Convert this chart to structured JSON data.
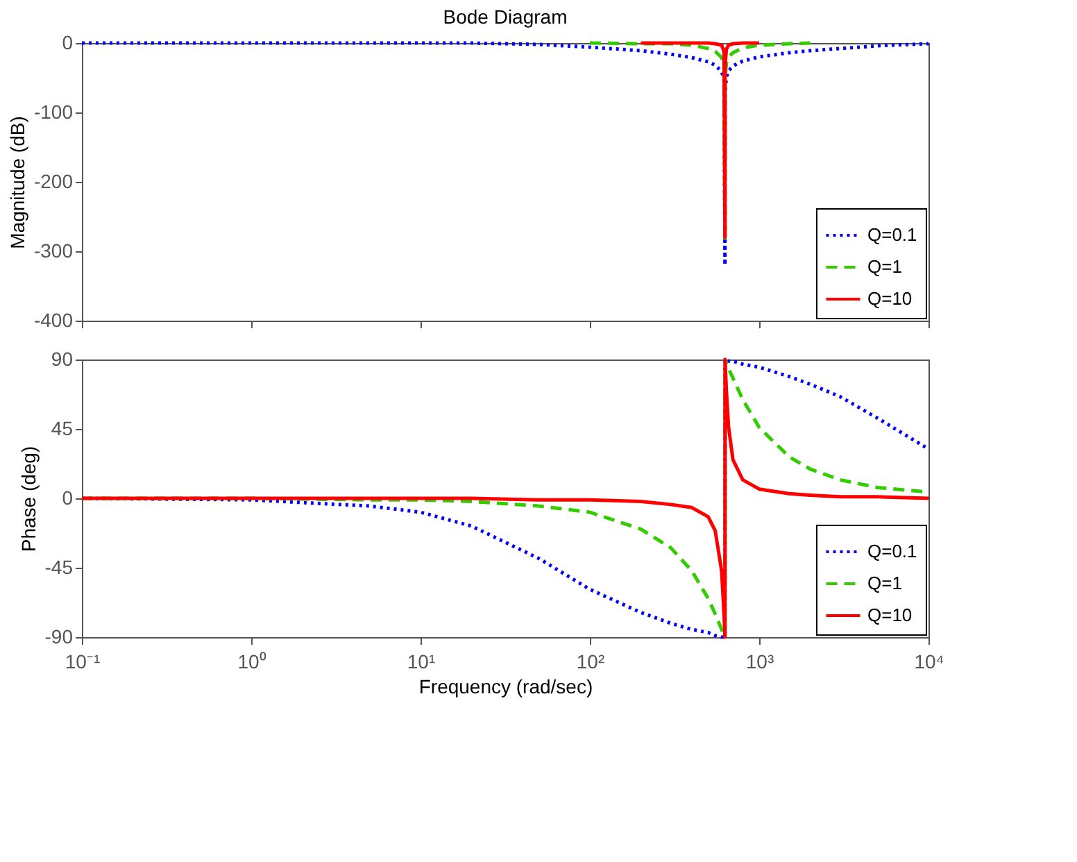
{
  "chart_data": [
    {
      "type": "line",
      "title": "Bode Diagram",
      "ylabel": "Magnitude (dB)",
      "log": "x",
      "grid": false,
      "legend": "bottom right",
      "tick_labels": "y",
      "x": [
        0.1,
        1,
        5,
        10,
        20,
        50,
        100,
        200,
        300,
        400,
        500,
        550,
        600,
        620,
        628,
        629,
        640,
        660,
        700,
        800,
        1000,
        1500,
        2000,
        3000,
        5000,
        10000
      ],
      "xlim": [
        0.1,
        10000
      ],
      "xticks": [
        {
          "value": 0.1,
          "label": null
        },
        {
          "value": 1,
          "label": null
        },
        {
          "value": 10,
          "label": null
        },
        {
          "value": 100,
          "label": null
        },
        {
          "value": 1000,
          "label": null
        },
        {
          "value": 10000,
          "label": null
        }
      ],
      "ylim": [
        -400,
        0
      ],
      "yticks": [
        -400,
        -300,
        -200,
        -100,
        0
      ],
      "series": [
        {
          "name": "Q=0.1",
          "color": "#0000ff",
          "line_style": "dotted",
          "values": [
            0,
            0,
            0,
            0,
            0,
            -2,
            -6,
            -11,
            -16,
            -21,
            -27,
            -32,
            -41,
            -52,
            -320,
            -73,
            -49,
            -40,
            -33,
            -26,
            -20,
            -14,
            -11,
            -8,
            -4,
            -1
          ]
        },
        {
          "name": "Q=1",
          "color": "#33cc00",
          "line_style": "dashed",
          "values": [
            null,
            null,
            null,
            null,
            null,
            null,
            0,
            -1,
            -1,
            -3,
            -8,
            -12,
            -21,
            -32,
            -285,
            -53,
            -29,
            -20,
            -14,
            -7,
            -3,
            -1,
            0,
            null,
            null,
            null
          ]
        },
        {
          "name": "Q=10",
          "color": "#ff0000",
          "line_style": "solid",
          "values": [
            null,
            null,
            null,
            null,
            null,
            null,
            null,
            0,
            0,
            0,
            0,
            -1,
            -3,
            -12,
            -280,
            -33,
            -9,
            -3,
            -1,
            0,
            0,
            null,
            null,
            null,
            null,
            null
          ]
        }
      ]
    },
    {
      "type": "line",
      "xlabel": "Frequency  (rad/sec)",
      "ylabel": "Phase (deg)",
      "log": "x",
      "grid": false,
      "legend": "bottom right",
      "x": [
        0.1,
        1,
        5,
        10,
        20,
        50,
        100,
        200,
        300,
        400,
        500,
        550,
        600,
        620,
        628,
        629,
        640,
        660,
        700,
        800,
        1000,
        1500,
        2000,
        3000,
        5000,
        10000
      ],
      "xlim": [
        0.1,
        10000
      ],
      "xticks": [
        {
          "value": 0.1,
          "label": "10⁻¹"
        },
        {
          "value": 1,
          "label": "10⁰"
        },
        {
          "value": 10,
          "label": "10¹"
        },
        {
          "value": 100,
          "label": "10²"
        },
        {
          "value": 1000,
          "label": "10³"
        },
        {
          "value": 10000,
          "label": "10⁴"
        }
      ],
      "ylim": [
        -90,
        90
      ],
      "yticks": [
        -90,
        -45,
        0,
        45,
        90
      ],
      "series": [
        {
          "name": "Q=0.1",
          "color": "#0000ff",
          "line_style": "dotted",
          "values": [
            0,
            -1,
            -5,
            -9,
            -18,
            -39,
            -59,
            -74,
            -81,
            -85,
            -87,
            -89,
            -90,
            -90,
            -90,
            90,
            90,
            89,
            89,
            87,
            85,
            79,
            74,
            66,
            52,
            32
          ]
        },
        {
          "name": "Q=1",
          "color": "#33cc00",
          "line_style": "dashed",
          "values": [
            0,
            0,
            -1,
            -1,
            -2,
            -5,
            -9,
            -20,
            -32,
            -47,
            -65,
            -75,
            -85,
            -89,
            -90,
            90,
            88,
            84,
            78,
            64,
            46,
            27,
            19,
            12,
            7,
            4
          ]
        },
        {
          "name": "Q=10",
          "color": "#ff0000",
          "line_style": "solid",
          "values": [
            0,
            0,
            0,
            0,
            0,
            -1,
            -1,
            -2,
            -4,
            -6,
            -12,
            -21,
            -47,
            -75,
            -90,
            90,
            70,
            46,
            25,
            12,
            6,
            3,
            2,
            1,
            1,
            0
          ]
        }
      ]
    }
  ]
}
